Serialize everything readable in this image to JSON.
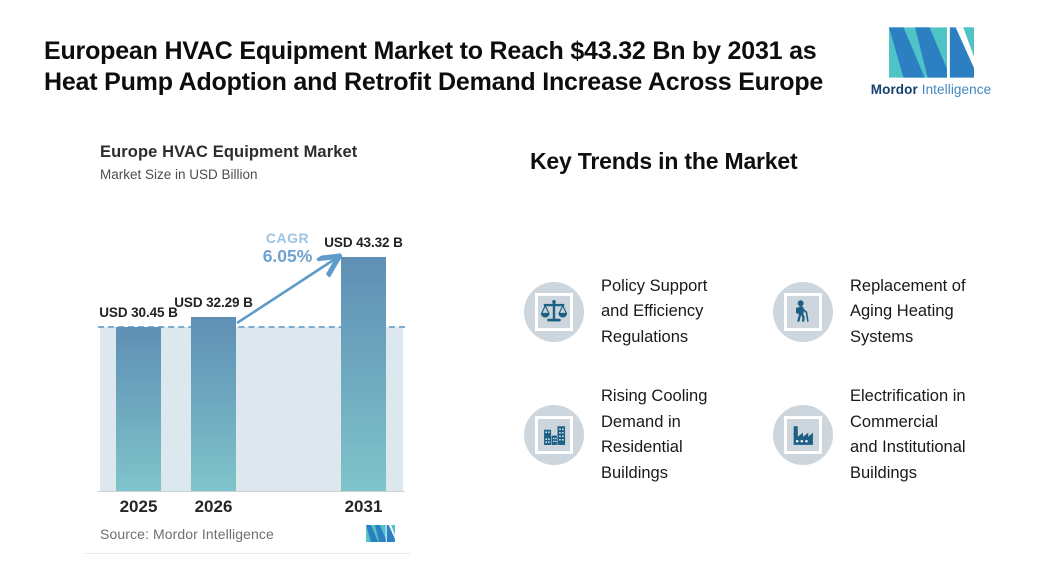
{
  "header": {
    "title": "European HVAC Equipment Market to Reach $43.32 Bn by 2031 as\nHeat Pump Adoption and Retrofit Demand Increase Across Europe",
    "brand": {
      "name_bold": "Mordor",
      "name_light": "Intelligence",
      "colors": {
        "teal": "#4fc4c6",
        "blue": "#2c80c2",
        "navy_text": "#173f6e",
        "blue_text": "#4187bf"
      }
    }
  },
  "chart": {
    "title": "Europe HVAC Equipment Market",
    "subtitle": "Market Size in USD Billion",
    "cagr_label": "CAGR",
    "cagr_value": "6.05%",
    "source": "Source: Mordor Intelligence"
  },
  "chart_data": {
    "type": "bar",
    "title": "Europe HVAC Equipment Market",
    "subtitle": "Market Size in USD Billion",
    "categories": [
      "2025",
      "2026",
      "2031"
    ],
    "values": [
      30.45,
      32.29,
      43.32
    ],
    "value_labels": [
      "USD 30.45 B",
      "USD 32.29 B",
      "USD 43.32 B"
    ],
    "ylabel": "Market Size in USD Billion",
    "ylim": [
      0,
      45
    ],
    "grid": false,
    "annotations": {
      "cagr_label": "CAGR",
      "cagr_value": "6.05%",
      "dashed_baseline_value": 30.45
    },
    "colors": {
      "bar_top": "#5f8fb5",
      "bar_bottom": "#7fc4ca",
      "band": "#dde7ee",
      "dashed_line": "#7badd3",
      "arrow": "#5f9bc8"
    }
  },
  "trends": {
    "heading": "Key Trends in the Market",
    "items": [
      {
        "icon": "scales-icon",
        "label": "Policy Support\nand Efficiency\nRegulations"
      },
      {
        "icon": "elderly-person-icon",
        "label": "Replacement of\nAging Heating\nSystems"
      },
      {
        "icon": "buildings-icon",
        "label": "Rising Cooling\nDemand in\nResidential\nBuildings"
      },
      {
        "icon": "factory-icon",
        "label": "Electrification in\nCommercial\nand Institutional\nBuildings"
      }
    ],
    "icon_color": "#1d5f85"
  }
}
